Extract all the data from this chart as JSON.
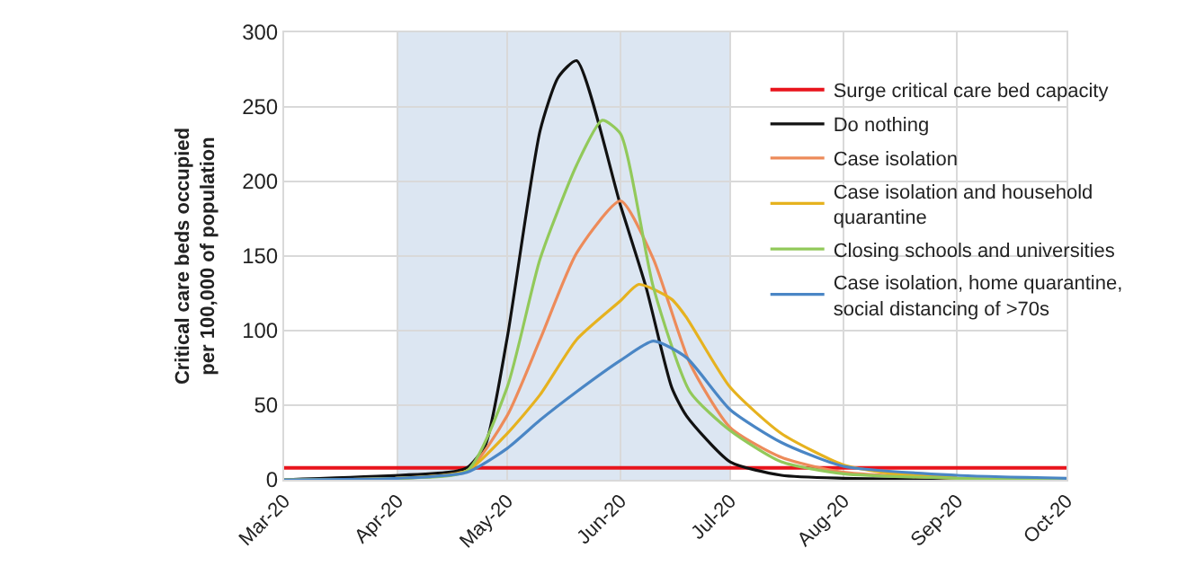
{
  "chart_data": {
    "type": "line",
    "ylabel": "Critical care beds occupied\nper 100,000 of population",
    "xlim": [
      "2020-03-01",
      "2020-10-01"
    ],
    "xticks": [
      {
        "value": "2020-03-01",
        "label": "Mar-20"
      },
      {
        "value": "2020-04-01",
        "label": "Apr-20"
      },
      {
        "value": "2020-05-01",
        "label": "May-20"
      },
      {
        "value": "2020-06-01",
        "label": "Jun-20"
      },
      {
        "value": "2020-07-01",
        "label": "Jul-20"
      },
      {
        "value": "2020-08-01",
        "label": "Aug-20"
      },
      {
        "value": "2020-09-01",
        "label": "Sep-20"
      },
      {
        "value": "2020-10-01",
        "label": "Oct-20"
      }
    ],
    "ylim": [
      0,
      300
    ],
    "yticks": [
      0,
      50,
      100,
      150,
      200,
      250,
      300
    ],
    "grid": true,
    "legend": "top right",
    "marker": "none",
    "line_style": "solid",
    "bands": [
      {
        "axis": "x",
        "from": "2020-04-01",
        "to": "2020-07-01",
        "color": "#dce6f2"
      }
    ],
    "series": [
      {
        "name": "Surge critical care bed capacity",
        "color": "#e8141c",
        "x": [
          "2020-03-01",
          "2020-10-01"
        ],
        "values": [
          8,
          8
        ]
      },
      {
        "name": "Do nothing",
        "color": "#111111",
        "x": [
          "2020-03-01",
          "2020-04-15",
          "2020-04-20",
          "2020-04-25",
          "2020-05-01",
          "2020-05-10",
          "2020-05-15",
          "2020-05-20",
          "2020-06-01",
          "2020-06-08",
          "2020-06-15",
          "2020-06-19",
          "2020-07-01",
          "2020-07-15",
          "2020-08-01",
          "2020-10-01"
        ],
        "values": [
          0,
          5,
          8,
          23,
          95,
          234,
          270,
          281,
          184,
          129,
          62,
          43,
          12,
          3,
          1,
          0
        ]
      },
      {
        "name": "Case isolation",
        "color": "#ed8b5a",
        "x": [
          "2020-03-01",
          "2020-04-01",
          "2020-04-20",
          "2020-05-01",
          "2020-05-10",
          "2020-05-20",
          "2020-06-01",
          "2020-06-10",
          "2020-06-20",
          "2020-07-01",
          "2020-07-15",
          "2020-08-01",
          "2020-09-01",
          "2020-10-01"
        ],
        "values": [
          0,
          1,
          6,
          43,
          94,
          152,
          187,
          148,
          78,
          35,
          15,
          5,
          1,
          0
        ]
      },
      {
        "name": "Case isolation and household\nquarantine",
        "color": "#e6b21f",
        "x": [
          "2020-03-01",
          "2020-04-01",
          "2020-04-20",
          "2020-05-01",
          "2020-05-10",
          "2020-05-20",
          "2020-06-01",
          "2020-06-06",
          "2020-06-15",
          "2020-06-19",
          "2020-07-01",
          "2020-07-15",
          "2020-08-01",
          "2020-08-15",
          "2020-09-01"
        ],
        "values": [
          0,
          1,
          6,
          31,
          57,
          94,
          120,
          131,
          121,
          109,
          62,
          31,
          10,
          4,
          2
        ]
      },
      {
        "name": "Closing schools and universities",
        "color": "#92c95a",
        "x": [
          "2020-03-01",
          "2020-04-01",
          "2020-04-20",
          "2020-05-01",
          "2020-05-10",
          "2020-05-20",
          "2020-05-27",
          "2020-06-01",
          "2020-06-10",
          "2020-06-20",
          "2020-07-01",
          "2020-07-15",
          "2020-08-01",
          "2020-09-01",
          "2020-10-01"
        ],
        "values": [
          0,
          1,
          6,
          62,
          148,
          211,
          241,
          232,
          129,
          59,
          33,
          12,
          4,
          1,
          0
        ]
      },
      {
        "name": "Case isolation, home quarantine,\nsocial distancing of >70s",
        "color": "#4a86c5",
        "x": [
          "2020-03-01",
          "2020-04-01",
          "2020-04-20",
          "2020-05-01",
          "2020-05-10",
          "2020-05-20",
          "2020-06-01",
          "2020-06-10",
          "2020-06-19",
          "2020-07-01",
          "2020-07-15",
          "2020-08-01",
          "2020-09-01",
          "2020-10-01"
        ],
        "values": [
          0,
          1,
          5,
          21,
          40,
          59,
          80,
          93,
          82,
          47,
          25,
          9,
          3,
          1
        ]
      }
    ]
  }
}
